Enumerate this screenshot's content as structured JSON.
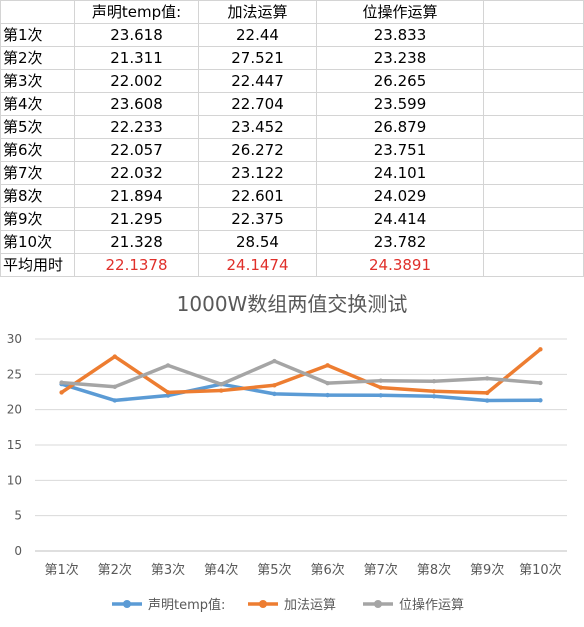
{
  "table": {
    "headers": [
      "",
      "声明temp值:",
      "加法运算",
      "位操作运算"
    ],
    "rows": [
      [
        "第1次",
        "23.618",
        "22.44",
        "23.833"
      ],
      [
        "第2次",
        "21.311",
        "27.521",
        "23.238"
      ],
      [
        "第3次",
        "22.002",
        "22.447",
        "26.265"
      ],
      [
        "第4次",
        "23.608",
        "22.704",
        "23.599"
      ],
      [
        "第5次",
        "22.233",
        "23.452",
        "26.879"
      ],
      [
        "第6次",
        "22.057",
        "26.272",
        "23.751"
      ],
      [
        "第7次",
        "22.032",
        "23.122",
        "24.101"
      ],
      [
        "第8次",
        "21.894",
        "22.601",
        "24.029"
      ],
      [
        "第9次",
        "21.295",
        "22.375",
        "24.414"
      ],
      [
        "第10次",
        "21.328",
        "28.54",
        "23.782"
      ]
    ],
    "avg_row": [
      "平均用时",
      "22.1378",
      "24.1474",
      "24.3891"
    ],
    "avg_color": "#e0302b"
  },
  "chart_data": {
    "type": "line",
    "title": "1000W数组两值交换测试",
    "categories": [
      "第1次",
      "第2次",
      "第3次",
      "第4次",
      "第5次",
      "第6次",
      "第7次",
      "第8次",
      "第9次",
      "第10次"
    ],
    "series": [
      {
        "name": "声明temp值:",
        "color": "#5b9bd5",
        "values": [
          23.618,
          21.311,
          22.002,
          23.608,
          22.233,
          22.057,
          22.032,
          21.894,
          21.295,
          21.328
        ]
      },
      {
        "name": "加法运算",
        "color": "#ed7d31",
        "values": [
          22.44,
          27.521,
          22.447,
          22.704,
          23.452,
          26.272,
          23.122,
          22.601,
          22.375,
          28.54
        ]
      },
      {
        "name": "位操作运算",
        "color": "#a5a5a5",
        "values": [
          23.833,
          23.238,
          26.265,
          23.599,
          26.879,
          23.751,
          24.101,
          24.029,
          24.414,
          23.782
        ]
      }
    ],
    "ylim": [
      0,
      30
    ],
    "yticks": [
      0,
      5,
      10,
      15,
      20,
      25,
      30
    ],
    "grid": true,
    "legend": "bottom"
  }
}
